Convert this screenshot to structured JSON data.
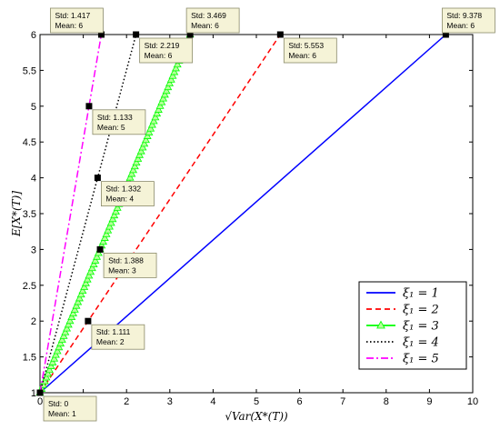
{
  "chart_data": {
    "type": "line",
    "xlabel": "√Var(X*(T))",
    "ylabel": "E[X*(T)]",
    "xlim": [
      0,
      10
    ],
    "ylim": [
      1,
      6
    ],
    "xticks": [
      "0",
      "1",
      "2",
      "3",
      "4",
      "5",
      "6",
      "7",
      "8",
      "9",
      "10"
    ],
    "yticks": [
      "1",
      "1.5",
      "2",
      "2.5",
      "3",
      "3.5",
      "4",
      "4.5",
      "5",
      "5.5",
      "6"
    ],
    "grid": false,
    "legend_placement": "bottom-right",
    "series": [
      {
        "name": "ξ₁ = 1",
        "color": "#0000ff",
        "dash": "solid",
        "marker": "none",
        "x": [
          0,
          9.378
        ],
        "y": [
          1,
          6
        ]
      },
      {
        "name": "ξ₁ = 2",
        "color": "#ff0000",
        "dash": "dashed",
        "marker": "none",
        "x": [
          0,
          1.111,
          5.553
        ],
        "y": [
          1,
          2,
          6
        ]
      },
      {
        "name": "ξ₁ = 3",
        "color": "#00ff00",
        "dash": "solid",
        "marker": "triangle",
        "x": [
          0,
          1.388,
          3.469
        ],
        "y": [
          1,
          3,
          6
        ]
      },
      {
        "name": "ξ₁ = 4",
        "color": "#000000",
        "dash": "dotted",
        "marker": "none",
        "x": [
          0,
          1.332,
          2.219
        ],
        "y": [
          1,
          4,
          6
        ]
      },
      {
        "name": "ξ₁ = 5",
        "color": "#ff00ff",
        "dash": "dashdot",
        "marker": "none",
        "x": [
          0,
          1.133,
          1.417
        ],
        "y": [
          1,
          5,
          6
        ]
      }
    ],
    "annotations": [
      {
        "x": 0,
        "y": 1,
        "std": "Std: 0",
        "mean": "Mean: 1",
        "pos": "below-right"
      },
      {
        "x": 1.111,
        "y": 2,
        "std": "Std: 1.111",
        "mean": "Mean: 2",
        "pos": "below-right"
      },
      {
        "x": 1.388,
        "y": 3,
        "std": "Std: 1.388",
        "mean": "Mean: 3",
        "pos": "below-right"
      },
      {
        "x": 1.332,
        "y": 4,
        "std": "Std: 1.332",
        "mean": "Mean: 4",
        "pos": "below-right"
      },
      {
        "x": 1.133,
        "y": 5,
        "std": "Std: 1.133",
        "mean": "Mean: 5",
        "pos": "below-right"
      },
      {
        "x": 1.417,
        "y": 6,
        "std": "Std: 1.417",
        "mean": "Mean: 6",
        "pos": "above-left"
      },
      {
        "x": 2.219,
        "y": 6,
        "std": "Std: 2.219",
        "mean": "Mean: 6",
        "pos": "below-right"
      },
      {
        "x": 3.469,
        "y": 6,
        "std": "Std: 3.469",
        "mean": "Mean: 6",
        "pos": "above-right"
      },
      {
        "x": 5.553,
        "y": 6,
        "std": "Std: 5.553",
        "mean": "Mean: 6",
        "pos": "below-right"
      },
      {
        "x": 9.378,
        "y": 6,
        "std": "Std: 9.378",
        "mean": "Mean: 6",
        "pos": "above-right"
      }
    ]
  }
}
